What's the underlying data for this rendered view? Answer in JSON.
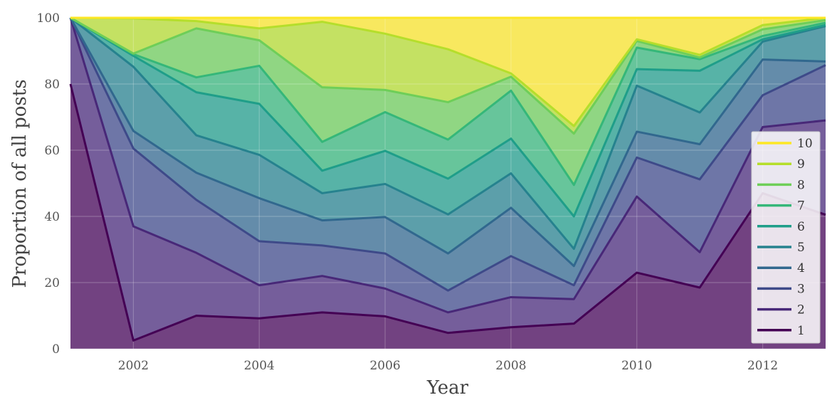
{
  "chart_data": {
    "type": "area",
    "stacked": true,
    "title": "",
    "xlabel": "Year",
    "ylabel": "Proportion of all posts",
    "xlim": [
      2001,
      2013
    ],
    "ylim": [
      0,
      100
    ],
    "x": [
      2001,
      2002,
      2003,
      2004,
      2005,
      2006,
      2007,
      2008,
      2009,
      2010,
      2011,
      2012,
      2013
    ],
    "x_ticks": [
      "2002",
      "2004",
      "2006",
      "2008",
      "2010",
      "2012"
    ],
    "y_ticks": [
      "0",
      "20",
      "40",
      "60",
      "80",
      "100"
    ],
    "grid": true,
    "legend_position": "right",
    "series": [
      {
        "name": "1",
        "color": "#440154",
        "cumulative": [
          80,
          2.5,
          10,
          9.2,
          11,
          9.8,
          4.8,
          6.5,
          7.6,
          23,
          18.5,
          47,
          40.5
        ]
      },
      {
        "name": "2",
        "color": "#482878",
        "cumulative": [
          100,
          37,
          29,
          19.2,
          22,
          18.2,
          11,
          15.6,
          15,
          46,
          29.2,
          67,
          69
        ]
      },
      {
        "name": "3",
        "color": "#3e4a89",
        "cumulative": [
          100,
          60.5,
          45,
          32.5,
          31.2,
          28.8,
          17.6,
          28,
          19.2,
          57.8,
          51.2,
          76.6,
          85.7
        ]
      },
      {
        "name": "4",
        "color": "#31688e",
        "cumulative": [
          100,
          65.8,
          53.2,
          45.5,
          38.8,
          39.8,
          28.8,
          42.6,
          25,
          65.6,
          61.8,
          87.4,
          86.8
        ]
      },
      {
        "name": "5",
        "color": "#26828e",
        "cumulative": [
          100,
          85.2,
          64.5,
          58.6,
          47,
          49.8,
          40.6,
          53,
          30.2,
          79.5,
          71.4,
          92.8,
          97.5
        ]
      },
      {
        "name": "6",
        "color": "#1f9e89",
        "cumulative": [
          100,
          88.5,
          77.5,
          74,
          53.8,
          59.8,
          51.4,
          63.5,
          40,
          84.5,
          84,
          93.5,
          97.8
        ]
      },
      {
        "name": "7",
        "color": "#35b779",
        "cumulative": [
          100,
          89,
          82,
          85.5,
          62.5,
          71.5,
          63.2,
          78,
          49.5,
          91,
          87.5,
          94.5,
          98.5
        ]
      },
      {
        "name": "8",
        "color": "#6ece58",
        "cumulative": [
          100,
          89.2,
          96.8,
          93.2,
          79,
          78.2,
          74.5,
          82.2,
          65,
          93,
          88,
          96.5,
          99.3
        ]
      },
      {
        "name": "9",
        "color": "#b5de2b",
        "cumulative": [
          100,
          99.8,
          99,
          96.8,
          98.8,
          95.2,
          90.5,
          83.2,
          67.3,
          93.5,
          88.8,
          97.8,
          100
        ]
      },
      {
        "name": "10",
        "color": "#fde725",
        "cumulative": [
          100,
          100,
          100,
          100,
          100,
          100,
          100,
          100,
          100,
          100,
          100,
          100,
          100
        ]
      }
    ]
  }
}
